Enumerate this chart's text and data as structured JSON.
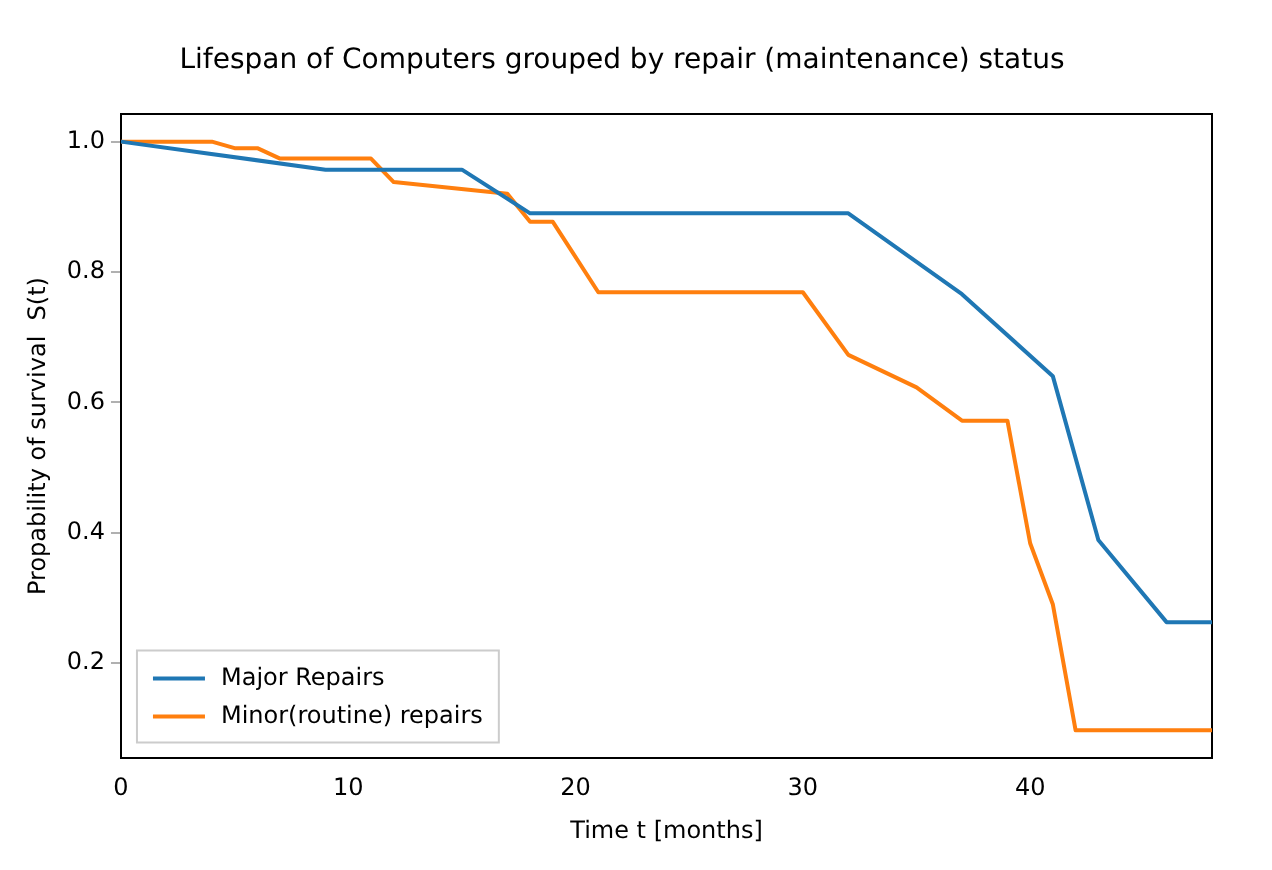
{
  "chart_data": {
    "type": "line",
    "title": "Lifespan of Computers grouped by repair (maintenance) status",
    "xlabel": "Time t [months]",
    "ylabel": "Propability of survival  S(t)",
    "xlim": [
      0,
      48
    ],
    "xticks": [
      0,
      10,
      20,
      30,
      40
    ],
    "ylim": [
      0.054,
      1.043
    ],
    "yticks": [
      {
        "value": 0.2,
        "label": "0.2"
      },
      {
        "value": 0.4,
        "label": "0.4"
      },
      {
        "value": 0.6,
        "label": "0.6"
      },
      {
        "value": 0.8,
        "label": "0.8"
      },
      {
        "value": 1.0,
        "label": "1.0"
      }
    ],
    "grid": false,
    "legend": "bottom left",
    "marker": "none",
    "line_style": "solid",
    "series": [
      {
        "name": "Major Repairs",
        "color": "#1f77b4",
        "x": [
          0,
          9,
          15,
          18,
          32,
          37,
          41,
          43,
          46,
          48
        ],
        "values": [
          1.0,
          0.957,
          0.957,
          0.89,
          0.89,
          0.766,
          0.64,
          0.389,
          0.263,
          0.263
        ]
      },
      {
        "name": "Minor(routine) repairs",
        "color": "#ff7f0e",
        "x": [
          0,
          4,
          5,
          6,
          7,
          11,
          12,
          17,
          18,
          19,
          21,
          30,
          32,
          35,
          37,
          39,
          40,
          41,
          42,
          48
        ],
        "values": [
          1.0,
          1.0,
          0.99,
          0.99,
          0.974,
          0.974,
          0.938,
          0.92,
          0.877,
          0.877,
          0.769,
          0.769,
          0.673,
          0.623,
          0.572,
          0.572,
          0.384,
          0.29,
          0.097,
          0.097
        ]
      }
    ]
  }
}
